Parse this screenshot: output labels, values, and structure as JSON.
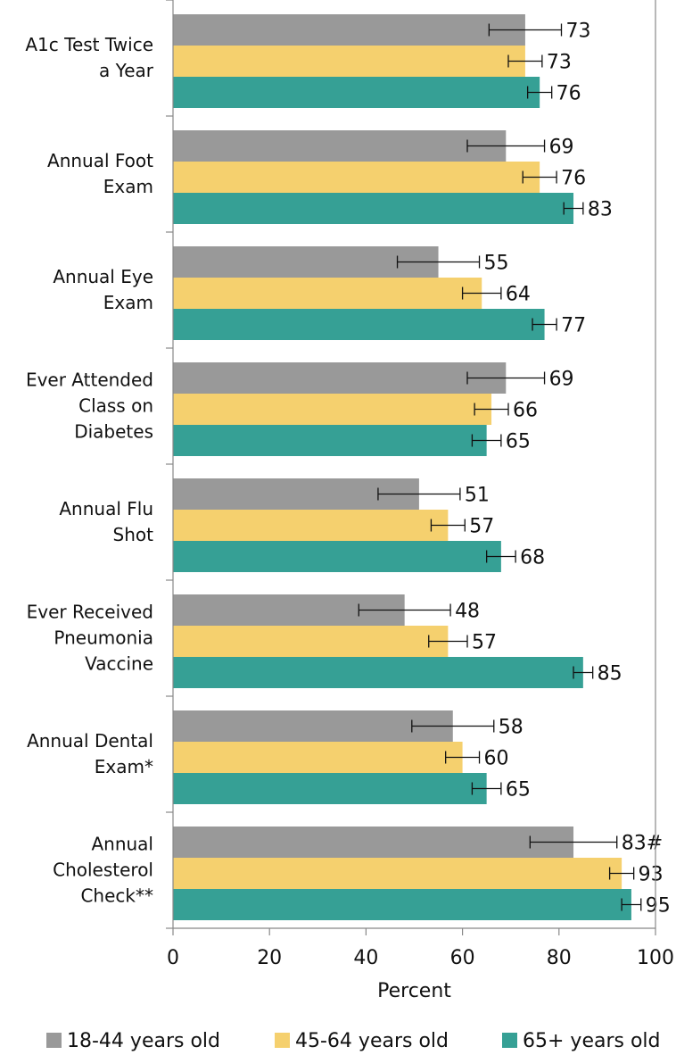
{
  "chart_data": {
    "type": "bar",
    "orientation": "horizontal",
    "categories": [
      "A1c Test Twice\na Year",
      "Annual Foot\nExam",
      "Annual Eye\nExam",
      "Ever Attended\nClass on\nDiabetes",
      "Annual Flu\nShot",
      "Ever Received\nPneumonia\nVaccine",
      "Annual Dental\nExam*",
      "Annual\nCholesterol\nCheck**"
    ],
    "series": [
      {
        "name": "18-44 years old",
        "color": "#999999",
        "values": [
          73,
          69,
          55,
          69,
          51,
          48,
          58,
          83
        ],
        "value_labels": [
          "73",
          "69",
          "55",
          "69",
          "51",
          "48",
          "58",
          "83#"
        ],
        "errors": [
          7.5,
          8,
          8.5,
          8,
          8.5,
          9.5,
          8.5,
          9
        ]
      },
      {
        "name": "45-64 years old",
        "color": "#f5d06e",
        "values": [
          73,
          76,
          64,
          66,
          57,
          57,
          60,
          93
        ],
        "errors": [
          3.5,
          3.5,
          4,
          3.5,
          3.5,
          4,
          3.5,
          2.5
        ]
      },
      {
        "name": "65+ years old",
        "color": "#36a095",
        "values": [
          76,
          83,
          77,
          65,
          68,
          85,
          65,
          95
        ],
        "errors": [
          2.5,
          2,
          2.5,
          3,
          3,
          2,
          3,
          2
        ]
      }
    ],
    "xlabel": "Percent",
    "xlim": [
      0,
      100
    ],
    "xticks": [
      0,
      20,
      40,
      60,
      80,
      100
    ],
    "grid": false,
    "legend": "bottom"
  }
}
